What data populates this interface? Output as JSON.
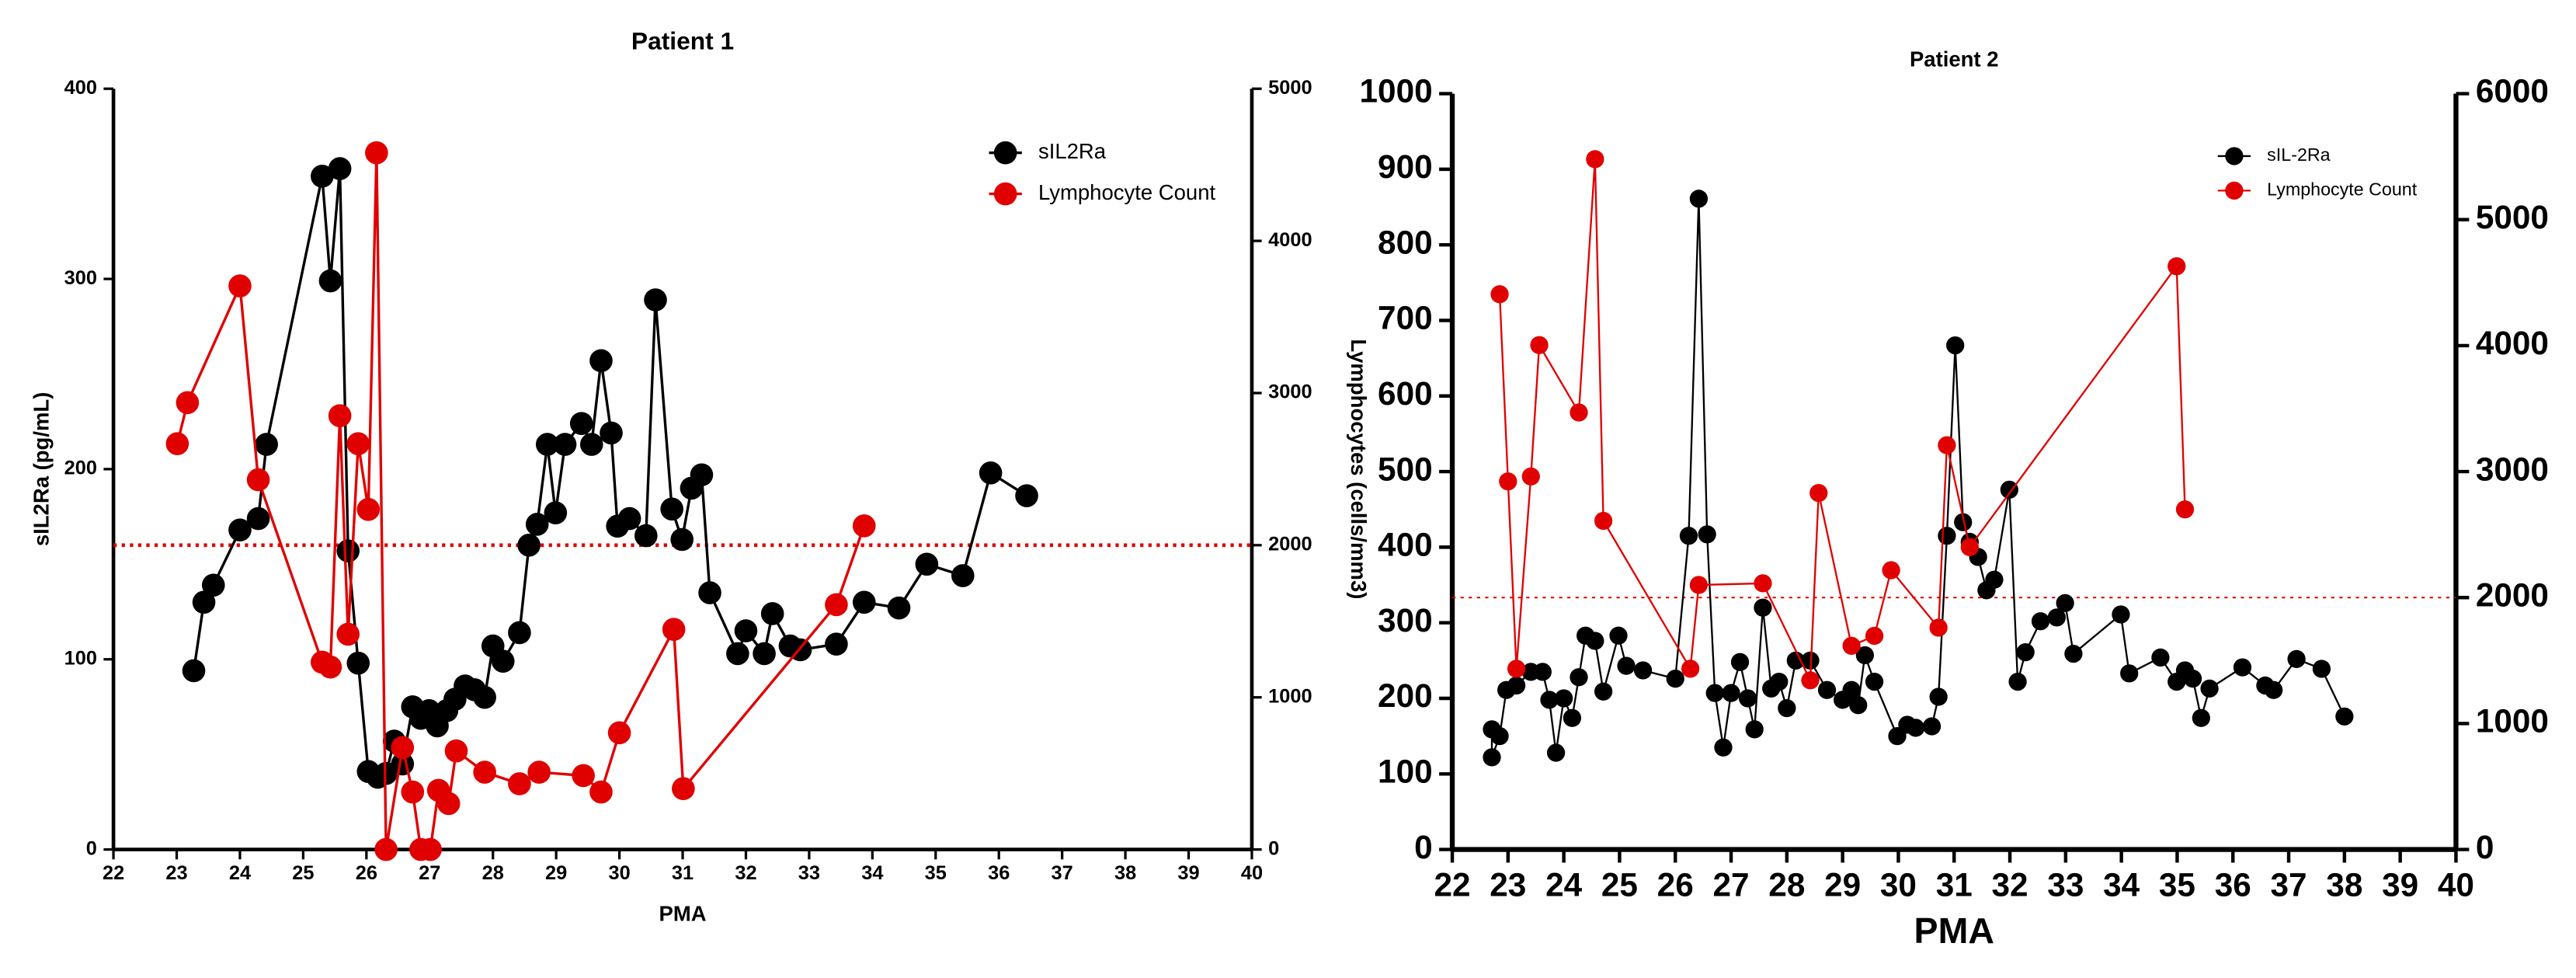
{
  "chart_data": [
    {
      "type": "line",
      "title": "Patient 1",
      "xlabel": "PMA",
      "ylabel": "sIL2Ra (pg/mL)",
      "y2label": "Lymphocytes (cells/mm3)",
      "xlim": [
        22,
        40
      ],
      "xticks": [
        22,
        23,
        24,
        25,
        26,
        27,
        28,
        29,
        30,
        31,
        32,
        33,
        34,
        35,
        36,
        37,
        38,
        39,
        40
      ],
      "ylim": [
        0,
        400
      ],
      "yticks": [
        0,
        100,
        200,
        300,
        400
      ],
      "y2lim": [
        0,
        5000
      ],
      "y2ticks": [
        0,
        1000,
        2000,
        3000,
        4000,
        5000
      ],
      "legend": "upper right",
      "hline": {
        "value": 2000,
        "axis": "y2",
        "color": "#e00000"
      },
      "series": [
        {
          "name": "sIL2Ra",
          "color": "#000000",
          "axis": "y",
          "x": [
            23.27,
            23.43,
            23.58,
            24.0,
            24.29,
            24.42,
            25.3,
            25.43,
            25.58,
            25.71,
            25.87,
            26.03,
            26.18,
            26.31,
            26.44,
            26.57,
            26.73,
            26.86,
            26.99,
            27.12,
            27.27,
            27.4,
            27.56,
            27.71,
            27.87,
            28.0,
            28.16,
            28.42,
            28.57,
            28.7,
            28.86,
            28.99,
            29.14,
            29.4,
            29.56,
            29.71,
            29.87,
            29.97,
            30.16,
            30.42,
            30.57,
            30.83,
            30.99,
            31.14,
            31.3,
            31.43,
            31.87,
            32.0,
            32.29,
            32.42,
            32.7,
            32.86,
            33.43,
            33.87,
            34.42,
            34.86,
            35.43,
            35.87,
            36.44
          ],
          "values": [
            94,
            130,
            139,
            168,
            174,
            213,
            354,
            299,
            358,
            157,
            98,
            41,
            38,
            40,
            57,
            45,
            75,
            69,
            73,
            65,
            73,
            79,
            86,
            84,
            80,
            107,
            99,
            114,
            160,
            171,
            213,
            177,
            213,
            224,
            213,
            257,
            219,
            170,
            174,
            165,
            289,
            179,
            163,
            190,
            197,
            135,
            103,
            115,
            103,
            124,
            107,
            105,
            108,
            130,
            127,
            150,
            144,
            198,
            186
          ]
        },
        {
          "name": "Lymphocyte Count",
          "color": "#e00000",
          "axis": "y2",
          "x": [
            23.01,
            23.17,
            24.0,
            24.29,
            25.3,
            25.43,
            25.58,
            25.71,
            25.87,
            26.03,
            26.16,
            26.31,
            26.57,
            26.73,
            26.86,
            27.01,
            27.14,
            27.3,
            27.42,
            27.87,
            28.42,
            28.73,
            29.43,
            29.71,
            30.0,
            30.86,
            31.01,
            33.43,
            33.87
          ],
          "values": [
            2667,
            2937,
            3704,
            2430,
            1231,
            1199,
            2851,
            1415,
            2667,
            2235,
            4579,
            0,
            670,
            378,
            0,
            0,
            389,
            302,
            648,
            508,
            432,
            508,
            486,
            378,
            767,
            1447,
            400,
            1609,
            2127
          ]
        }
      ]
    },
    {
      "type": "line",
      "title": "Patient 2",
      "xlabel": "PMA",
      "xlim": [
        22,
        40
      ],
      "xticks": [
        22,
        23,
        24,
        25,
        26,
        27,
        28,
        29,
        30,
        31,
        32,
        33,
        34,
        35,
        36,
        37,
        38,
        39,
        40
      ],
      "ylim": [
        0,
        1000
      ],
      "yticks": [
        0,
        100,
        200,
        300,
        400,
        500,
        600,
        700,
        800,
        900,
        1000
      ],
      "y2lim": [
        0,
        6000
      ],
      "y2ticks": [
        0,
        1000,
        2000,
        3000,
        4000,
        5000,
        6000
      ],
      "legend": "upper right",
      "hline": {
        "value": 2000,
        "axis": "y2",
        "color": "#e00000"
      },
      "series": [
        {
          "name": "sIL-2Ra",
          "color": "#000000",
          "axis": "y",
          "x": [
            22.71,
            22.71,
            22.85,
            22.97,
            23.15,
            23.41,
            23.62,
            23.74,
            23.86,
            24.0,
            24.15,
            24.27,
            24.39,
            24.56,
            24.71,
            24.98,
            25.12,
            25.42,
            26.0,
            26.24,
            26.42,
            26.57,
            26.71,
            26.86,
            27.0,
            27.16,
            27.3,
            27.42,
            27.57,
            27.72,
            27.86,
            28.0,
            28.16,
            28.42,
            28.72,
            29.0,
            29.16,
            29.28,
            29.4,
            29.57,
            29.98,
            30.16,
            30.31,
            30.6,
            30.72,
            30.87,
            31.02,
            31.16,
            31.28,
            31.43,
            31.58,
            31.72,
            31.99,
            32.14,
            32.28,
            32.55,
            32.84,
            32.99,
            33.14,
            33.99,
            34.14,
            34.7,
            34.99,
            35.14,
            35.28,
            35.43,
            35.58,
            36.17,
            36.58,
            36.73,
            37.14,
            37.59,
            38.0
          ],
          "values": [
            159,
            122,
            150,
            211,
            217,
            235,
            235,
            198,
            128,
            200,
            174,
            228,
            283,
            276,
            209,
            283,
            243,
            237,
            226,
            415,
            861,
            417,
            207,
            135,
            207,
            248,
            200,
            159,
            320,
            213,
            222,
            187,
            250,
            250,
            211,
            198,
            211,
            191,
            257,
            222,
            150,
            165,
            161,
            163,
            202,
            415,
            667,
            433,
            407,
            387,
            343,
            357,
            476,
            222,
            261,
            302,
            307,
            326,
            259,
            311,
            233,
            254,
            222,
            237,
            226,
            174,
            213,
            241,
            217,
            211,
            252,
            239,
            176
          ]
        },
        {
          "name": "Lymphocyte Count",
          "color": "#e00000",
          "axis": "y2",
          "x": [
            22.85,
            23.0,
            23.15,
            23.41,
            23.56,
            24.27,
            24.56,
            24.71,
            26.27,
            26.42,
            27.57,
            28.42,
            28.57,
            29.16,
            29.57,
            29.87,
            30.72,
            30.87,
            31.28,
            34.99,
            35.14
          ],
          "values": [
            4408,
            2922,
            1435,
            2961,
            4004,
            3469,
            5480,
            2609,
            1435,
            2100,
            2113,
            1343,
            2830,
            1617,
            1696,
            2217,
            1761,
            3209,
            2400,
            4630,
            2700
          ]
        }
      ]
    }
  ]
}
